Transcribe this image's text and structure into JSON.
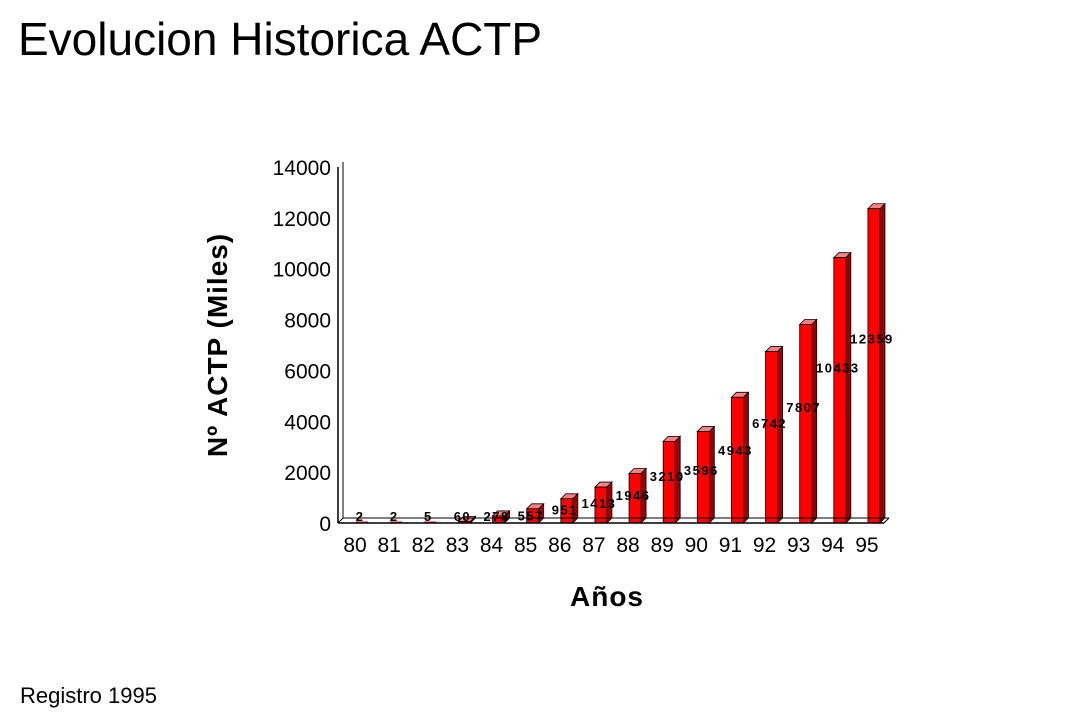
{
  "slide": {
    "title": "Evolucion Historica ACTP",
    "footer": "Registro 1995"
  },
  "colors": {
    "bar_front": "#ff0000",
    "bar_side": "#9c0000",
    "bar_top": "#ff8080",
    "axis": "#000000",
    "background": "#ffffff"
  },
  "chart_data": {
    "type": "bar",
    "title": "",
    "xlabel": "Años",
    "ylabel": "Nº ACTP (Miles)",
    "categories": [
      "80",
      "81",
      "82",
      "83",
      "84",
      "85",
      "86",
      "87",
      "88",
      "89",
      "90",
      "91",
      "92",
      "93",
      "94",
      "95"
    ],
    "values": [
      2,
      2,
      5,
      60,
      278,
      557,
      951,
      1413,
      1946,
      3210,
      3596,
      4943,
      6742,
      7807,
      10433,
      12359
    ],
    "data_labels": [
      "2",
      "2",
      "5",
      "60",
      "278",
      "557",
      "951",
      "1413",
      "1946",
      "3210",
      "3596",
      "4943",
      "6742",
      "7807",
      "10433",
      "12359"
    ],
    "ylim": [
      0,
      14000
    ],
    "yticks": [
      "0",
      "2000",
      "4000",
      "6000",
      "8000",
      "10000",
      "12000",
      "14000"
    ],
    "grid": false,
    "legend": "none",
    "style": "3d"
  }
}
